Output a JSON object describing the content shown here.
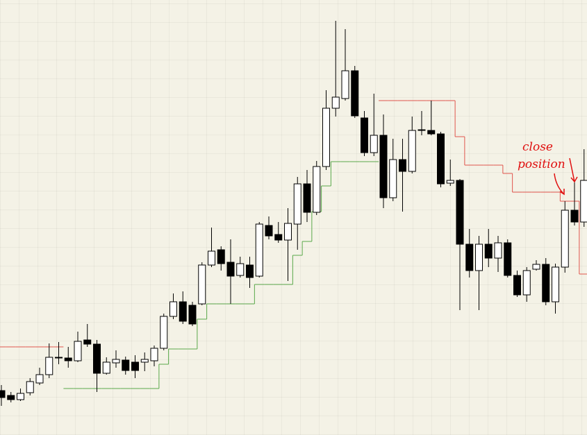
{
  "chart_data": {
    "type": "candlestick",
    "ylim": [
      0,
      627
    ],
    "up_color": "#ffffff",
    "down_color": "#000000",
    "wick_color": "#000000",
    "open": [
      64,
      57,
      51,
      61,
      75,
      87,
      111,
      111,
      107,
      137,
      131,
      89,
      104,
      108,
      105,
      105,
      107,
      125,
      171,
      192,
      187,
      189,
      245,
      267,
      249,
      230,
      245,
      229,
      302,
      289,
      281,
      304,
      362,
      321,
      387,
      471,
      485,
      525,
      457,
      407,
      432,
      342,
      397,
      380,
      439,
      439,
      434,
      363,
      367,
      275,
      237,
      275,
      255,
      277,
      230,
      202,
      239,
      246,
      192,
      242,
      324,
      307
    ],
    "high": [
      72,
      62,
      67,
      82,
      97,
      132,
      134,
      127,
      149,
      160,
      137,
      112,
      122,
      113,
      115,
      119,
      129,
      175,
      204,
      207,
      192,
      249,
      299,
      272,
      282,
      257,
      257,
      307,
      315,
      307,
      327,
      372,
      382,
      395,
      497,
      597,
      585,
      532,
      467,
      492,
      462,
      427,
      427,
      459,
      467,
      482,
      437,
      397,
      369,
      297,
      287,
      297,
      287,
      282,
      237,
      242,
      252,
      255,
      247,
      337,
      367,
      412
    ],
    "low": [
      42,
      47,
      49,
      57,
      72,
      82,
      102,
      97,
      105,
      127,
      62,
      87,
      97,
      87,
      82,
      92,
      99,
      122,
      167,
      160,
      157,
      187,
      242,
      237,
      189,
      227,
      212,
      227,
      282,
      277,
      222,
      267,
      307,
      317,
      382,
      459,
      482,
      457,
      402,
      402,
      327,
      337,
      322,
      377,
      432,
      432,
      357,
      359,
      180,
      227,
      180,
      242,
      235,
      227,
      199,
      192,
      237,
      187,
      175,
      234,
      302,
      300
    ],
    "close": [
      54,
      51,
      60,
      77,
      87,
      112,
      112,
      107,
      135,
      131,
      89,
      105,
      109,
      93,
      93,
      109,
      125,
      171,
      192,
      164,
      160,
      245,
      265,
      247,
      229,
      247,
      227,
      304,
      287,
      281,
      305,
      362,
      321,
      387,
      471,
      487,
      525,
      460,
      407,
      432,
      342,
      397,
      380,
      439,
      440,
      434,
      362,
      367,
      275,
      237,
      275,
      255,
      277,
      230,
      202,
      237,
      246,
      192,
      242,
      324,
      307,
      367
    ],
    "stops": [
      {
        "color": "#e0544c",
        "values": [
          127,
          127,
          127,
          127,
          127,
          127,
          127,
          null,
          null,
          null,
          null,
          null,
          null,
          null,
          null,
          null,
          null,
          null,
          null,
          null,
          null,
          null,
          null,
          null,
          null,
          null,
          null,
          null,
          null,
          null,
          null,
          null,
          null,
          null,
          null,
          null,
          null,
          null,
          null,
          null,
          482,
          482,
          482,
          482,
          482,
          482,
          482,
          482,
          430,
          389,
          389,
          389,
          389,
          377,
          350,
          350,
          350,
          350,
          350,
          337,
          337,
          232
        ]
      },
      {
        "color": "#5aa84a",
        "values": [
          null,
          null,
          null,
          null,
          null,
          null,
          null,
          67,
          67,
          67,
          67,
          67,
          67,
          67,
          67,
          67,
          67,
          102,
          124,
          124,
          124,
          167,
          189,
          189,
          189,
          189,
          189,
          217,
          217,
          217,
          217,
          259,
          279,
          322,
          359,
          394,
          394,
          394,
          394,
          394,
          null,
          null,
          null,
          null,
          null,
          null,
          null,
          null,
          null,
          null,
          null,
          null,
          null,
          null,
          null,
          null,
          null,
          null,
          null,
          null,
          null,
          null
        ]
      }
    ],
    "annotations": [
      "close",
      "position"
    ],
    "annotation_color": "#e01010"
  }
}
